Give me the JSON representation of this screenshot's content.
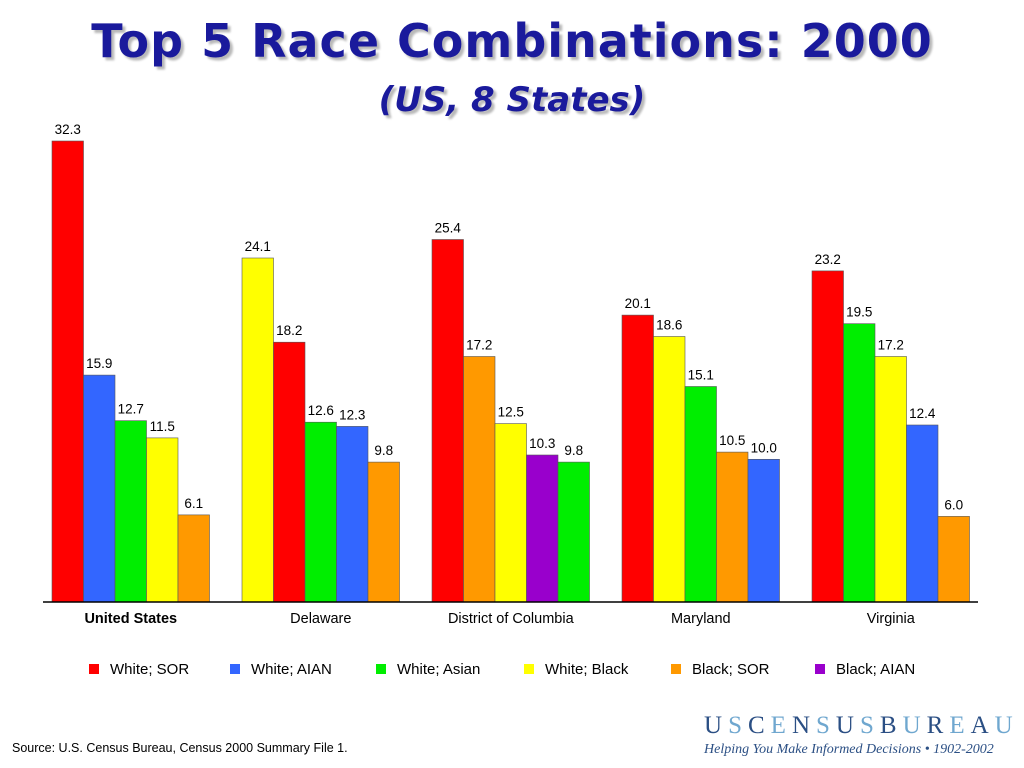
{
  "header": {
    "title": "Top 5 Race Combinations: 2000",
    "subtitle": "(US, 8 States)"
  },
  "chart_data": {
    "type": "bar",
    "title": "Top 5 Race Combinations: 2000",
    "subtitle": "(US, 8 States)",
    "ylim": [
      0,
      33
    ],
    "grid": false,
    "legend_position": "bottom",
    "groups": [
      {
        "name": "United States",
        "bold": true,
        "bars": [
          {
            "series": "White; SOR",
            "value": 32.3,
            "label": "32.3"
          },
          {
            "series": "White; AIAN",
            "value": 15.9,
            "label": "15.9"
          },
          {
            "series": "White; Asian",
            "value": 12.7,
            "label": "12.7"
          },
          {
            "series": "White; Black",
            "value": 11.5,
            "label": "11.5"
          },
          {
            "series": "Black; SOR",
            "value": 6.1,
            "label": "6.1"
          }
        ]
      },
      {
        "name": "Delaware",
        "bold": false,
        "bars": [
          {
            "series": "White; Black",
            "value": 24.1,
            "label": "24.1"
          },
          {
            "series": "White; SOR",
            "value": 18.2,
            "label": "18.2"
          },
          {
            "series": "White; Asian",
            "value": 12.6,
            "label": "12.6"
          },
          {
            "series": "White; AIAN",
            "value": 12.3,
            "label": "12.3"
          },
          {
            "series": "Black; SOR",
            "value": 9.8,
            "label": "9.8"
          }
        ]
      },
      {
        "name": "District of Columbia",
        "bold": false,
        "bars": [
          {
            "series": "White; SOR",
            "value": 25.4,
            "label": "25.4"
          },
          {
            "series": "Black; SOR",
            "value": 17.2,
            "label": "17.2"
          },
          {
            "series": "White; Black",
            "value": 12.5,
            "label": "12.5"
          },
          {
            "series": "Black; AIAN",
            "value": 10.3,
            "label": "10.3"
          },
          {
            "series": "White; Asian",
            "value": 9.8,
            "label": "9.8"
          }
        ]
      },
      {
        "name": "Maryland",
        "bold": false,
        "bars": [
          {
            "series": "White; SOR",
            "value": 20.1,
            "label": "20.1"
          },
          {
            "series": "White; Black",
            "value": 18.6,
            "label": "18.6"
          },
          {
            "series": "White; Asian",
            "value": 15.1,
            "label": "15.1"
          },
          {
            "series": "Black; SOR",
            "value": 10.5,
            "label": "10.5"
          },
          {
            "series": "White; AIAN",
            "value": 10.0,
            "label": "10.0"
          }
        ]
      },
      {
        "name": "Virginia",
        "bold": false,
        "bars": [
          {
            "series": "White; SOR",
            "value": 23.2,
            "label": "23.2"
          },
          {
            "series": "White; Asian",
            "value": 19.5,
            "label": "19.5"
          },
          {
            "series": "White; Black",
            "value": 17.2,
            "label": "17.2"
          },
          {
            "series": "White; AIAN",
            "value": 12.4,
            "label": "12.4"
          },
          {
            "series": "Black; SOR",
            "value": 6.0,
            "label": "6.0"
          }
        ]
      }
    ],
    "series": [
      {
        "name": "White; SOR",
        "color": "#ff0000"
      },
      {
        "name": "White; AIAN",
        "color": "#3366ff"
      },
      {
        "name": "White; Asian",
        "color": "#00ee00"
      },
      {
        "name": "White; Black",
        "color": "#ffff00"
      },
      {
        "name": "Black; SOR",
        "color": "#ff9900"
      },
      {
        "name": "Black; AIAN",
        "color": "#9900cc"
      }
    ]
  },
  "footer": {
    "source": "Source:  U.S. Census Bureau, Census 2000 Summary File 1.",
    "logo_letters": [
      "U",
      "S",
      "C",
      "E",
      "N",
      "S",
      "U",
      "S",
      "B",
      "U",
      "R",
      "E",
      "A",
      "U"
    ],
    "logo_tagline": "Helping You Make Informed Decisions • 1902-2002"
  }
}
